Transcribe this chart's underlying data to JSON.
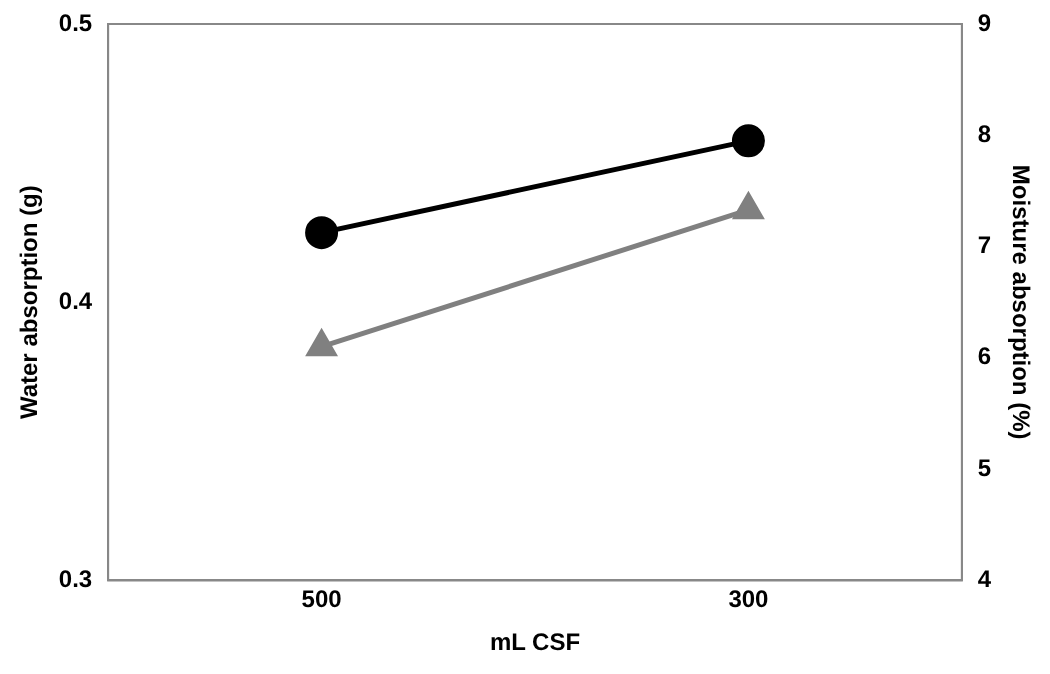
{
  "chart_data": {
    "type": "line",
    "xlabel": "mL CSF",
    "ylabel": "Water absorption (g)",
    "y2label": "Moisture absorption (%)",
    "categories": [
      "500",
      "300"
    ],
    "series": [
      {
        "color": "#000000",
        "values": [
          0.425,
          0.458
        ],
        "marker": "circle"
      },
      {
        "color": "#808080",
        "values": [
          6.1,
          7.33
        ],
        "marker": "triangle",
        "axis": "y2"
      }
    ],
    "ylim": [
      0.3,
      0.5
    ],
    "yticks": [
      0.3,
      0.4,
      0.5
    ],
    "y2lim": [
      4,
      9
    ],
    "y2ticks": [
      4,
      5,
      6,
      7,
      8,
      9
    ],
    "grid": false,
    "legend": false
  }
}
